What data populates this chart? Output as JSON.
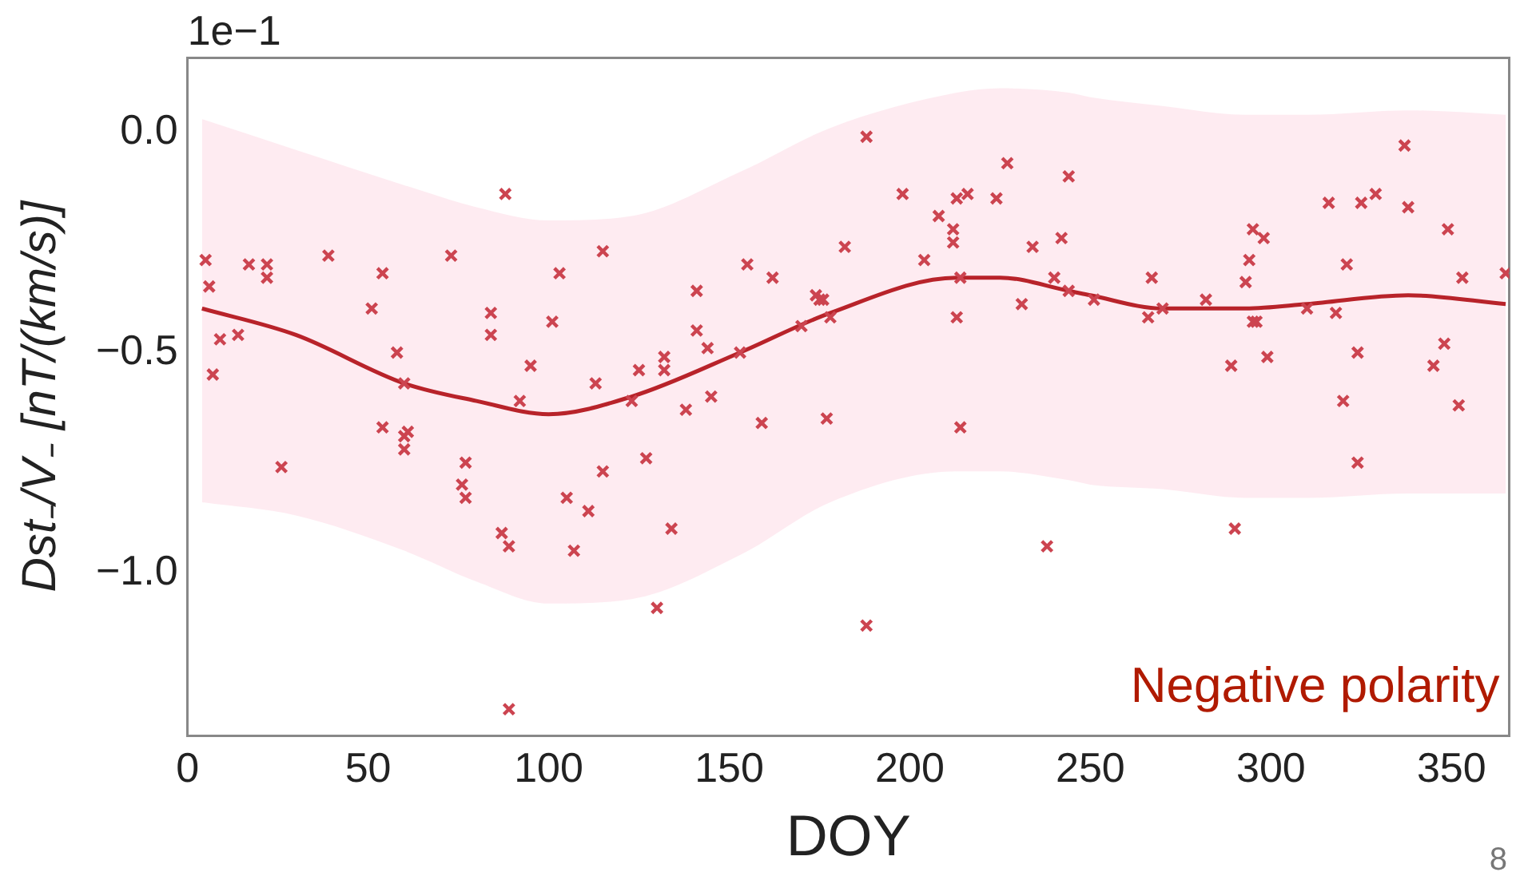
{
  "chart_data": {
    "type": "scatter",
    "xlabel": "DOY",
    "ylabel": "Dst₋/V₋ [nT/(km/s)]",
    "annotations": [
      "1e−1",
      "Negative polarity",
      "8"
    ],
    "xlim": [
      0,
      366
    ],
    "ylim": [
      -1.37,
      0.17
    ],
    "xticks": [
      0,
      50,
      100,
      150,
      200,
      250,
      300,
      350
    ],
    "yticks": [
      {
        "value": 0,
        "label": "0.0"
      },
      {
        "value": -0.5,
        "label": "−0.5"
      },
      {
        "value": -1,
        "label": "−1.0"
      }
    ],
    "grid": false,
    "legend": false,
    "series": [
      {
        "type": "scatter",
        "color": "#cc4450",
        "marker": "cross",
        "x": [
          5,
          6,
          7,
          9,
          14,
          17,
          22,
          22,
          26,
          39,
          51,
          54,
          54,
          58,
          60,
          60,
          61,
          60,
          73,
          77,
          76,
          77,
          84,
          84,
          88,
          87,
          89,
          89,
          92,
          95,
          101,
          103,
          105,
          107,
          111,
          113,
          115,
          115,
          123,
          125,
          127,
          130,
          132,
          132,
          134,
          138,
          141,
          141,
          144,
          145,
          153,
          155,
          159,
          162,
          170,
          174,
          175,
          176,
          178,
          177,
          182,
          188,
          188,
          198,
          204,
          208,
          212,
          212,
          213,
          216,
          213,
          214,
          214,
          224,
          227,
          231,
          234,
          238,
          240,
          242,
          244,
          244,
          251,
          266,
          267,
          270,
          282,
          289,
          290,
          293,
          294,
          295,
          298,
          295,
          296,
          299,
          310,
          316,
          318,
          320,
          321,
          324,
          324,
          325,
          329,
          337,
          338,
          345,
          348,
          349,
          352,
          353,
          365
        ],
        "values": [
          -0.29,
          -0.35,
          -0.55,
          -0.47,
          -0.46,
          -0.3,
          -0.3,
          -0.33,
          -0.76,
          -0.28,
          -0.4,
          -0.32,
          -0.67,
          -0.5,
          -0.57,
          -0.69,
          -0.68,
          -0.72,
          -0.28,
          -0.75,
          -0.8,
          -0.83,
          -0.41,
          -0.46,
          -0.14,
          -0.91,
          -0.94,
          -1.31,
          -0.61,
          -0.53,
          -0.43,
          -0.32,
          -0.83,
          -0.95,
          -0.86,
          -0.57,
          -0.27,
          -0.77,
          -0.61,
          -0.54,
          -0.74,
          -1.08,
          -0.51,
          -0.54,
          -0.9,
          -0.63,
          -0.36,
          -0.45,
          -0.49,
          -0.6,
          -0.5,
          -0.3,
          -0.66,
          -0.33,
          -0.44,
          -0.37,
          -0.38,
          -0.38,
          -0.42,
          -0.65,
          -0.26,
          -0.01,
          -1.12,
          -0.14,
          -0.29,
          -0.19,
          -0.22,
          -0.25,
          -0.15,
          -0.14,
          -0.42,
          -0.33,
          -0.67,
          -0.15,
          -0.07,
          -0.39,
          -0.26,
          -0.94,
          -0.33,
          -0.24,
          -0.1,
          -0.36,
          -0.38,
          -0.42,
          -0.33,
          -0.4,
          -0.38,
          -0.53,
          -0.9,
          -0.34,
          -0.29,
          -0.22,
          -0.24,
          -0.43,
          -0.43,
          -0.51,
          -0.4,
          -0.16,
          -0.41,
          -0.61,
          -0.3,
          -0.5,
          -0.75,
          -0.16,
          -0.14,
          -0.03,
          -0.17,
          -0.53,
          -0.48,
          -0.22,
          -0.62,
          -0.33,
          -0.32
        ]
      },
      {
        "type": "line",
        "color": "#b8232a",
        "marker": "none",
        "x": [
          4,
          30,
          60,
          80,
          100,
          123,
          153,
          178,
          213,
          225,
          244,
          250,
          270,
          293,
          310,
          338,
          365
        ],
        "values": [
          -0.4,
          -0.46,
          -0.57,
          -0.61,
          -0.64,
          -0.6,
          -0.5,
          -0.41,
          -0.33,
          -0.33,
          -0.36,
          -0.37,
          -0.4,
          -0.4,
          -0.39,
          -0.37,
          -0.39
        ],
        "lower": [
          -0.84,
          -0.87,
          -0.95,
          -1.02,
          -1.07,
          -1.06,
          -0.96,
          -0.84,
          -0.77,
          -0.77,
          -0.79,
          -0.8,
          -0.81,
          -0.83,
          -0.83,
          -0.82,
          -0.82
        ],
        "upper": [
          0.03,
          -0.04,
          -0.12,
          -0.17,
          -0.2,
          -0.19,
          -0.09,
          0.01,
          0.09,
          0.1,
          0.09,
          0.08,
          0.06,
          0.04,
          0.04,
          0.05,
          0.04
        ]
      }
    ]
  }
}
